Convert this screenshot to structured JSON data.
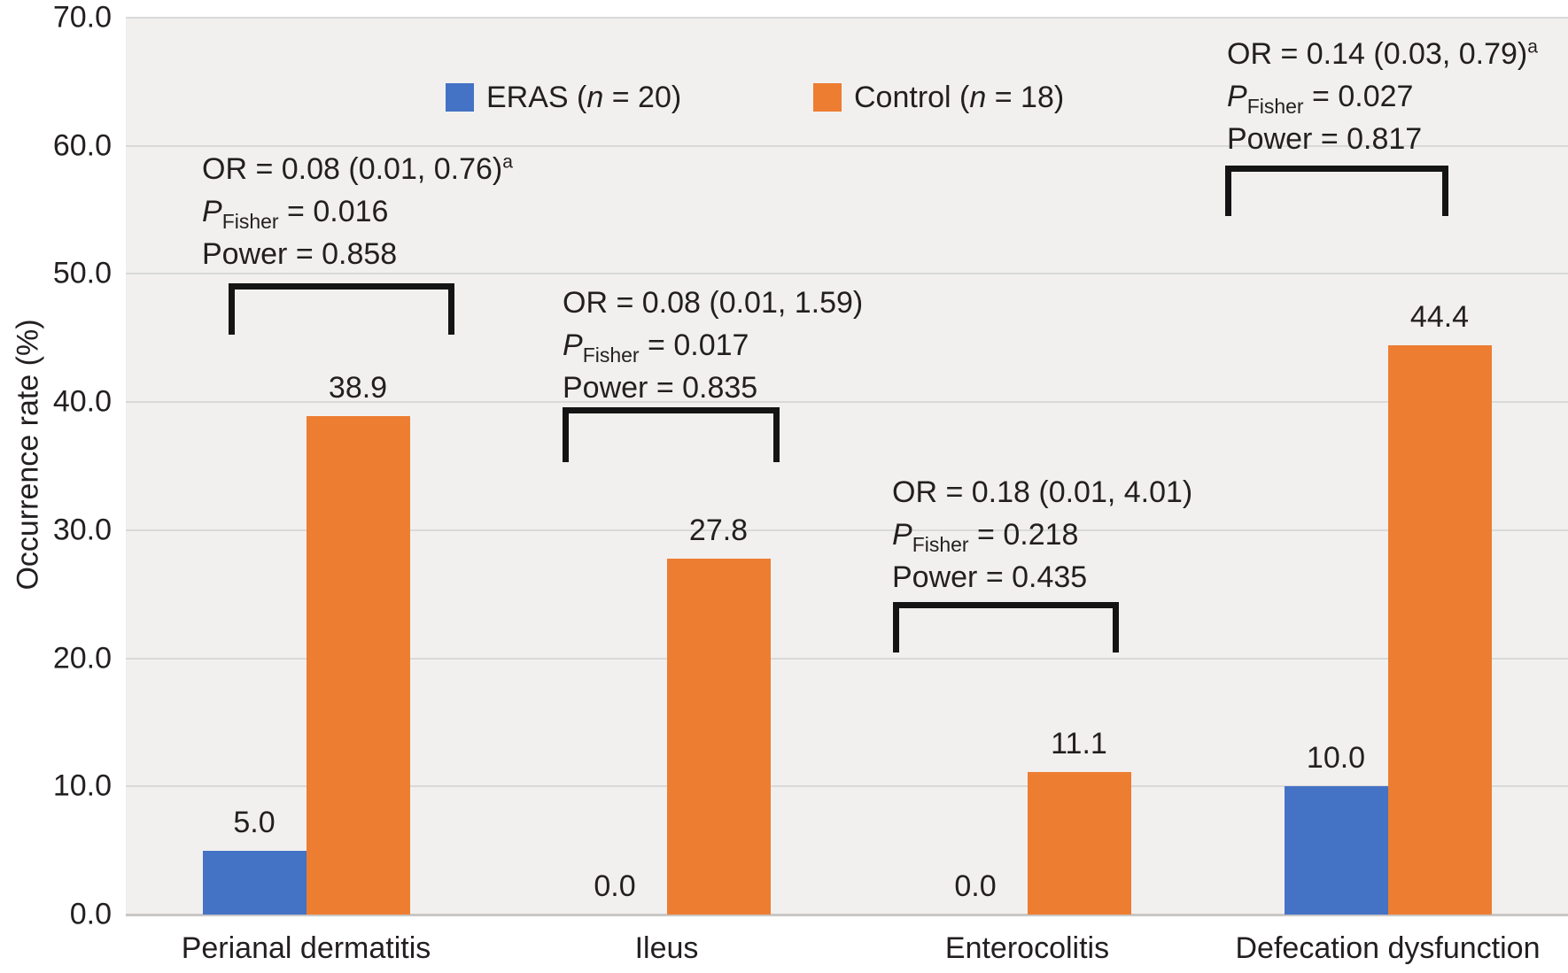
{
  "chart_data": {
    "type": "bar",
    "title": "",
    "ylabel": "Occurrence rate (%)",
    "ylim": [
      0,
      70
    ],
    "ytick_step": 10,
    "yticks": [
      "0.0",
      "10.0",
      "20.0",
      "30.0",
      "40.0",
      "50.0",
      "60.0",
      "70.0"
    ],
    "grid": true,
    "legend_position": "top",
    "categories": [
      "Perianal dermatitis",
      "Ileus",
      "Enterocolitis",
      "Defecation dysfunction"
    ],
    "series": [
      {
        "name": "ERAS (n = 20)",
        "color": "#4472c4",
        "values": [
          5.0,
          0.0,
          0.0,
          10.0
        ],
        "labels": [
          "5.0",
          "0.0",
          "0.0",
          "10.0"
        ]
      },
      {
        "name": "Control (n = 18)",
        "color": "#ed7d31",
        "values": [
          38.9,
          27.8,
          11.1,
          44.4
        ],
        "labels": [
          "38.9",
          "27.8",
          "11.1",
          "44.4"
        ]
      }
    ],
    "legend": {
      "items": [
        {
          "prefix": "ERAS (",
          "n": "n",
          "suffix": " = 20)",
          "color": "#4472c4"
        },
        {
          "prefix": "Control (",
          "n": "n",
          "suffix": " = 18)",
          "color": "#ed7d31"
        }
      ]
    },
    "annotations": [
      {
        "or": "OR = 0.08 (0.01, 0.76)",
        "or_sup": "a",
        "p_symbol": "P",
        "p_sub": "Fisher",
        "p_value": " = 0.016",
        "power": "Power = 0.858"
      },
      {
        "or": "OR = 0.08 (0.01, 1.59)",
        "or_sup": "",
        "p_symbol": "P",
        "p_sub": "Fisher",
        "p_value": " = 0.017",
        "power": "Power = 0.835"
      },
      {
        "or": "OR = 0.18 (0.01, 4.01)",
        "or_sup": "",
        "p_symbol": "P",
        "p_sub": "Fisher",
        "p_value": " = 0.218",
        "power": "Power = 0.435"
      },
      {
        "or": "OR = 0.14 (0.03, 0.79)",
        "or_sup": "a",
        "p_symbol": "P",
        "p_sub": "Fisher",
        "p_value": " = 0.027",
        "power": "Power = 0.817"
      }
    ],
    "colors": {
      "plot_bg": "#f1f0ef",
      "gridline": "#d9d9d9",
      "axis_line": "#c9c7c6",
      "text": "#231f20",
      "bracket": "#141414",
      "eras": "#4472c4",
      "control": "#ed7d31"
    }
  }
}
